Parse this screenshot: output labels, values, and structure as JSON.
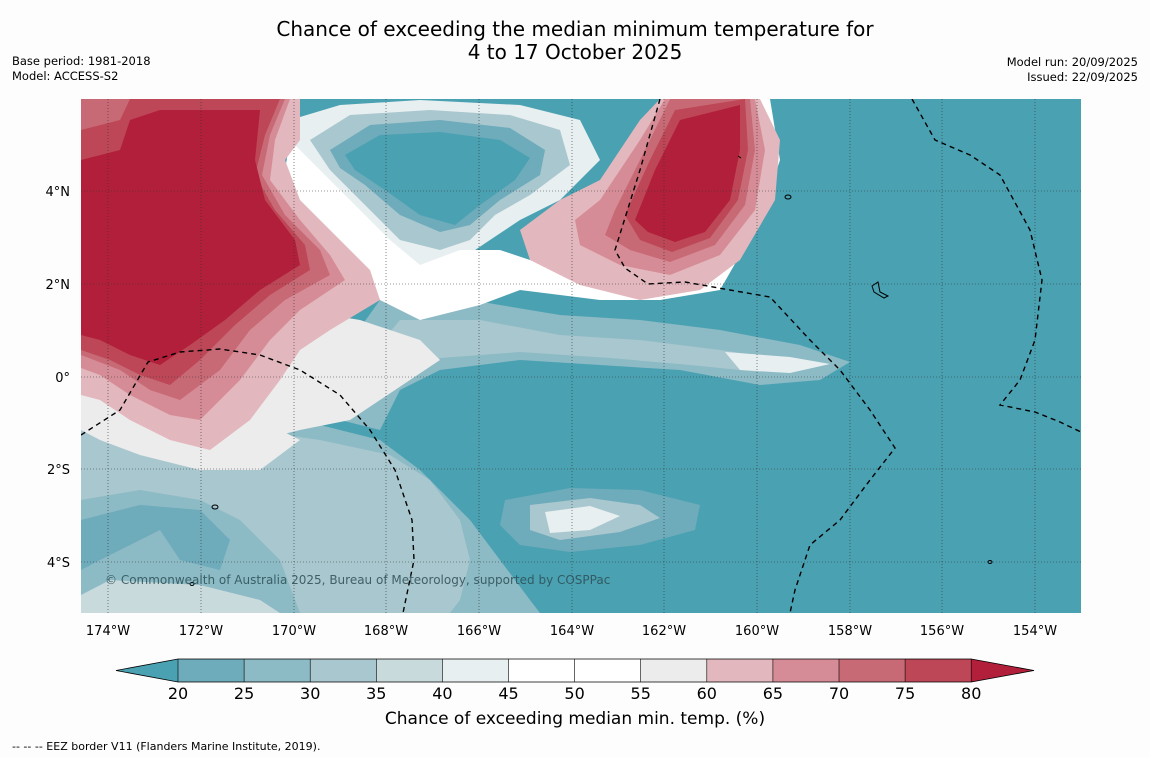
{
  "title": {
    "line1": "Chance of exceeding the median minimum temperature for",
    "line2": "4 to 17 October 2025"
  },
  "meta": {
    "base_period": "Base period: 1981-2018",
    "model": "Model: ACCESS-S2",
    "model_run": "Model run: 20/09/2025",
    "issued": "Issued: 22/09/2025"
  },
  "map": {
    "lat_labels": [
      "4°N",
      "2°N",
      "0°",
      "2°S",
      "4°S"
    ],
    "lon_labels": [
      "174°W",
      "172°W",
      "170°W",
      "168°W",
      "166°W",
      "164°W",
      "162°W",
      "160°W",
      "158°W",
      "156°W",
      "154°W"
    ],
    "copyright": "© Commonwealth of Australia 2025, Bureau of Meteorology, supported by COSPPac"
  },
  "colorbar": {
    "ticks": [
      "20",
      "25",
      "30",
      "35",
      "40",
      "45",
      "50",
      "55",
      "60",
      "65",
      "70",
      "75",
      "80"
    ],
    "colors": [
      "#4aa1b2",
      "#6eabbb",
      "#8cbac5",
      "#a9c7ce",
      "#c9dadd",
      "#e8eff1",
      "#ffffff",
      "#ffffff",
      "#ececec",
      "#e2b7bd",
      "#d68c96",
      "#c86a76",
      "#bd4756",
      "#b21f3a"
    ],
    "title": "Chance of exceeding median min. temp. (%)"
  },
  "footer": "--  --  -- EEZ border V11 (Flanders Marine Institute, 2019)."
}
